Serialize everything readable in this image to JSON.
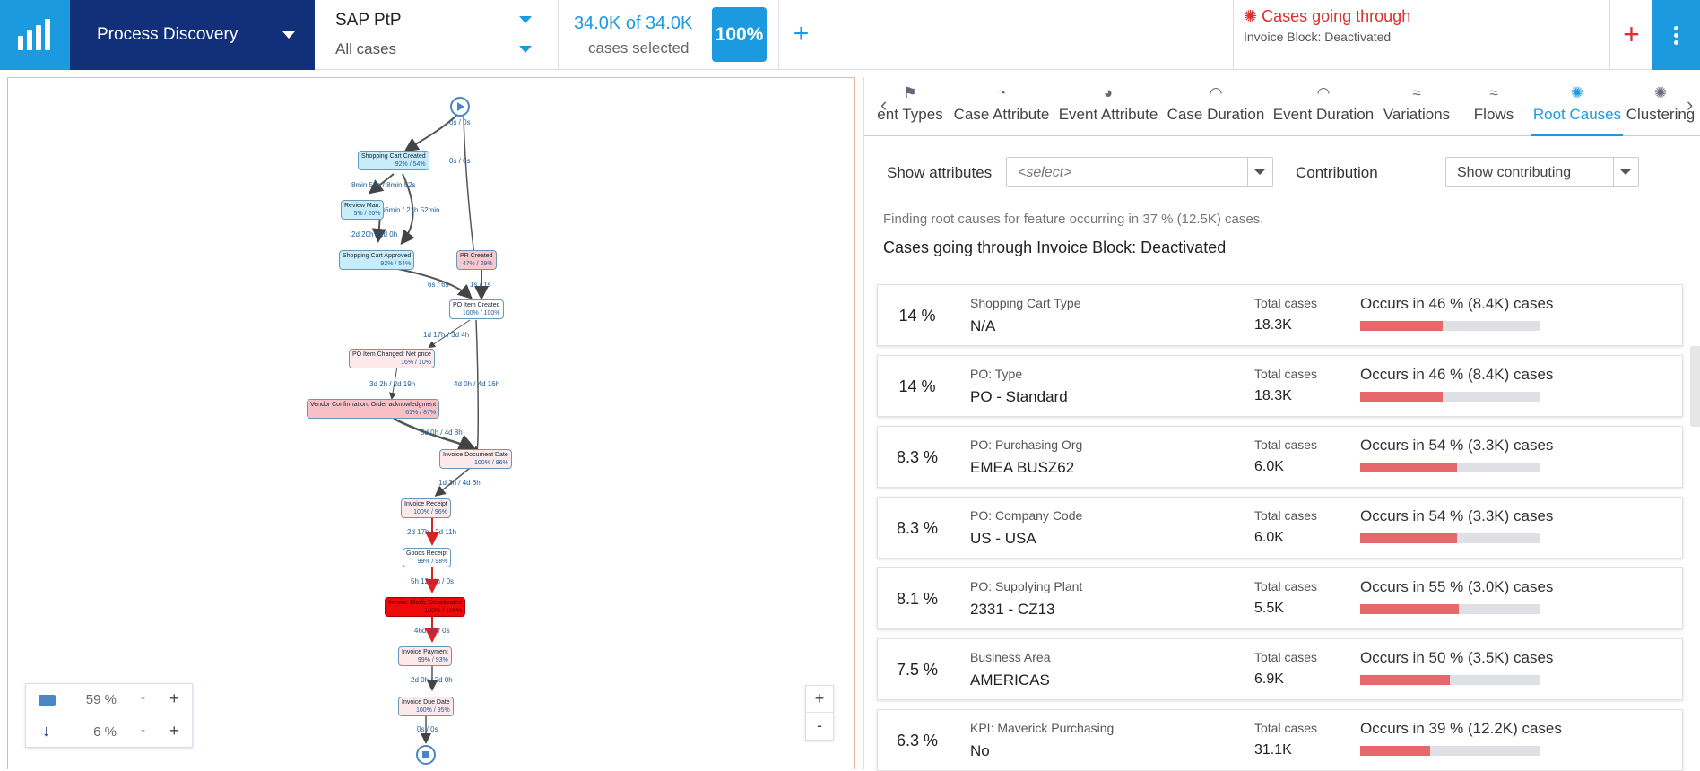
{
  "app_title": "Process Discovery",
  "dataset": {
    "name": "SAP PtP",
    "cases": "All cases"
  },
  "selection": {
    "count": "34.0K of 34.0K",
    "label": "cases selected",
    "percent": "100%"
  },
  "add_filter": "+",
  "filter": {
    "title": "Cases going through",
    "value": "Invoice Block: Deactivated",
    "add": "+"
  },
  "graph": {
    "nodes": [
      {
        "name": "Shopping Cart Created",
        "val": "92% / 54%",
        "kind": "blue"
      },
      {
        "name": "Review Man.",
        "val": "5% / 20%",
        "kind": "blue"
      },
      {
        "name": "Shopping Cart Approved",
        "val": "92% / 54%",
        "kind": "blue"
      },
      {
        "name": "PR Created",
        "val": "47% / 29%",
        "kind": "red"
      },
      {
        "name": "PO Item Created",
        "val": "100% / 100%",
        "kind": "white"
      },
      {
        "name": "PO Item Changed: Net price",
        "val": "16% / 10%",
        "kind": "pink"
      },
      {
        "name": "Vendor Confirmation: Order acknowledgment",
        "val": "61% / 87%",
        "kind": "red"
      },
      {
        "name": "Invoice Document Date",
        "val": "100% / 96%",
        "kind": "white"
      },
      {
        "name": "Invoice Receipt",
        "val": "100% / 96%",
        "kind": "white"
      },
      {
        "name": "Goods Receipt",
        "val": "99% / 98%",
        "kind": "white"
      },
      {
        "name": "Invoice Block: Deactivated",
        "val": "100% / 100%",
        "kind": "highlight"
      },
      {
        "name": "Invoice Payment",
        "val": "99% / 93%",
        "kind": "white"
      },
      {
        "name": "Invoice Due Date",
        "val": "100% / 95%",
        "kind": "white"
      }
    ],
    "edges": [
      "0s / 0s",
      "0s / 0s",
      "8min 50s / 8min 52s",
      "h 36min / 21h 52min",
      "2d 20h / 2d 0h",
      "6s / 6s",
      "1s / 1s",
      "1d 17h / 3d 4h",
      "3d 2h / 2d 19h",
      "4d 0h / 4d 16h",
      "5d 0h / 4d 8h",
      "1d 3h / 4d 6h",
      "2d 17h / 2d 11h",
      "5h 12min / 0s",
      "46d 6h / 0s",
      "2d 0h / 2d 0h",
      "0s / 0s"
    ],
    "legend": {
      "activities": "59 %",
      "paths": "6 %",
      "minus": "-",
      "plus": "+"
    },
    "zoom": {
      "in": "+",
      "out": "-"
    }
  },
  "tabs": [
    {
      "label": "ent Types",
      "icon": "event-types-icon"
    },
    {
      "label": "Case Attribute",
      "icon": "case-attribute-icon"
    },
    {
      "label": "Event Attribute",
      "icon": "event-attribute-icon"
    },
    {
      "label": "Case Duration",
      "icon": "case-duration-icon"
    },
    {
      "label": "Event Duration",
      "icon": "event-duration-icon"
    },
    {
      "label": "Variations",
      "icon": "variations-icon"
    },
    {
      "label": "Flows",
      "icon": "flows-icon"
    },
    {
      "label": "Root Causes",
      "icon": "root-causes-icon",
      "active": true
    },
    {
      "label": "Clustering",
      "icon": "clustering-icon"
    }
  ],
  "controls": {
    "show_attributes_label": "Show attributes",
    "show_attributes_placeholder": "<select>",
    "contribution_label": "Contribution",
    "contribution_value": "Show contributing"
  },
  "info": "Finding root causes for feature occurring in 37 % (12.5K) cases.",
  "feature": "Cases going through Invoice Block: Deactivated",
  "total_label": "Total cases",
  "results": [
    {
      "pct": "14 %",
      "attr": "Shopping Cart Type",
      "value": "N/A",
      "total": "18.3K",
      "occurs": "Occurs in 46 % (8.4K) cases",
      "ratio": 0.46
    },
    {
      "pct": "14 %",
      "attr": "PO: Type",
      "value": "PO - Standard",
      "total": "18.3K",
      "occurs": "Occurs in 46 % (8.4K) cases",
      "ratio": 0.46
    },
    {
      "pct": "8.3 %",
      "attr": "PO: Purchasing Org",
      "value": "EMEA BUSZ62",
      "total": "6.0K",
      "occurs": "Occurs in 54 % (3.3K) cases",
      "ratio": 0.54
    },
    {
      "pct": "8.3 %",
      "attr": "PO: Company Code",
      "value": "US - USA",
      "total": "6.0K",
      "occurs": "Occurs in 54 % (3.3K) cases",
      "ratio": 0.54
    },
    {
      "pct": "8.1 %",
      "attr": "PO: Supplying Plant",
      "value": "2331 - CZ13",
      "total": "5.5K",
      "occurs": "Occurs in 55 % (3.0K) cases",
      "ratio": 0.55
    },
    {
      "pct": "7.5 %",
      "attr": "Business Area",
      "value": "AMERICAS",
      "total": "6.9K",
      "occurs": "Occurs in 50 % (3.5K) cases",
      "ratio": 0.5
    },
    {
      "pct": "6.3 %",
      "attr": "KPI: Maverick Purchasing",
      "value": "No",
      "total": "31.1K",
      "occurs": "Occurs in 39 % (12.2K) cases",
      "ratio": 0.39
    }
  ]
}
